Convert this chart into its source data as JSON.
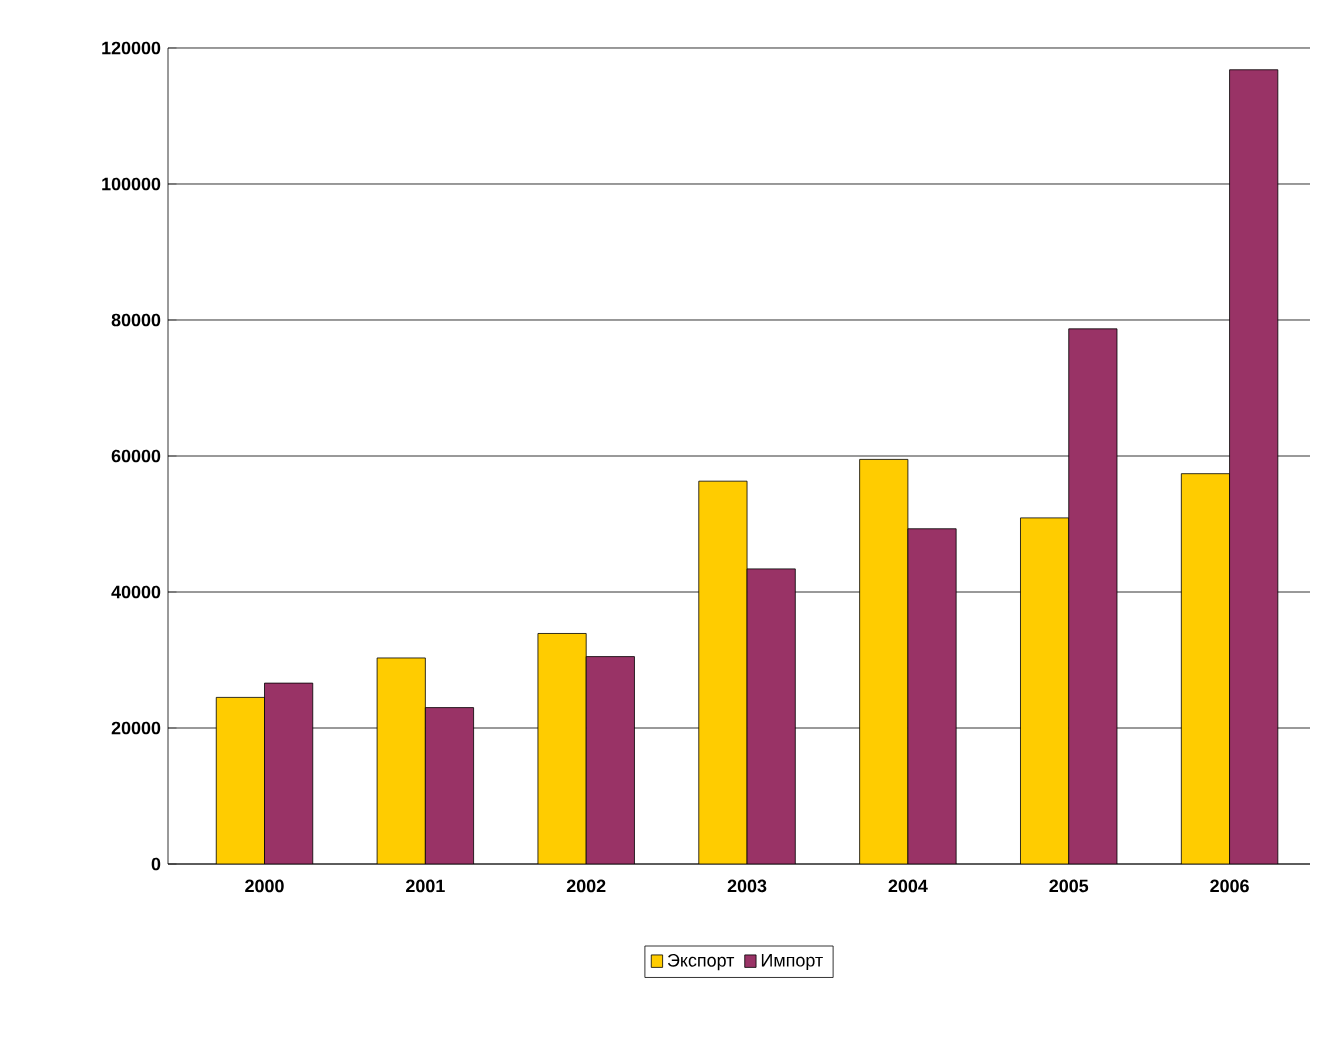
{
  "chart_data": {
    "type": "bar",
    "categories": [
      "2000",
      "2001",
      "2002",
      "2003",
      "2004",
      "2005",
      "2006"
    ],
    "series": [
      {
        "name": "Экспорт",
        "color": "#ffcc00",
        "values": [
          24500,
          30300,
          33900,
          56300,
          59500,
          50900,
          57400
        ]
      },
      {
        "name": "Импорт",
        "color": "#993366",
        "values": [
          26600,
          23000,
          30500,
          43400,
          49300,
          78700,
          116800
        ]
      }
    ],
    "ylim": [
      0,
      120000
    ],
    "yticks": [
      0,
      20000,
      40000,
      60000,
      80000,
      100000,
      120000
    ],
    "grid": "y",
    "legend": "bottom"
  }
}
